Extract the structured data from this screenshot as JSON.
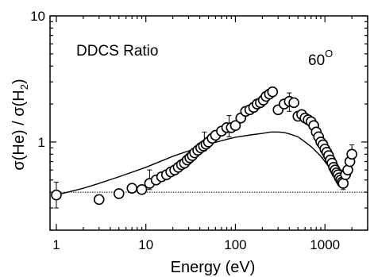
{
  "chart_data": {
    "type": "scatter",
    "annotation_left": "DDCS Ratio",
    "annotation_right_value": "60",
    "annotation_right_unit": "O",
    "xlabel": "Energy (eV)",
    "ylabel_parts": [
      "σ(He) / σ(H",
      "2",
      ")"
    ],
    "x_scale": "log",
    "y_scale": "log",
    "xlim": [
      0.85,
      3000
    ],
    "ylim": [
      0.2,
      10
    ],
    "x_ticks": [
      1,
      10,
      100,
      1000
    ],
    "x_tick_labels": [
      "1",
      "10",
      "100",
      "1000"
    ],
    "y_ticks": [
      1,
      10
    ],
    "y_tick_labels": [
      "1",
      "10"
    ],
    "grid": false,
    "series": [
      {
        "kind": "points",
        "marker": "open-circle",
        "x": [
          1,
          3,
          5,
          7,
          9,
          11,
          13,
          15,
          17,
          19,
          21,
          23,
          25,
          27,
          29,
          31,
          33,
          35,
          38,
          41,
          44,
          47,
          50,
          55,
          60,
          70,
          80,
          90,
          100,
          115,
          130,
          145,
          160,
          175,
          190,
          205,
          220,
          240,
          260,
          300,
          350,
          400,
          450,
          500,
          550,
          600,
          650,
          700,
          750,
          800,
          850,
          900,
          950,
          1000,
          1050,
          1100,
          1150,
          1200,
          1250,
          1300,
          1350,
          1400,
          1450,
          1500,
          1550,
          1600,
          1700,
          1800,
          1900,
          2000
        ],
        "y": [
          0.38,
          0.35,
          0.39,
          0.43,
          0.42,
          0.47,
          0.5,
          0.53,
          0.55,
          0.58,
          0.6,
          0.63,
          0.66,
          0.68,
          0.72,
          0.75,
          0.78,
          0.82,
          0.86,
          0.9,
          0.93,
          0.96,
          1.0,
          1.07,
          1.13,
          1.22,
          1.3,
          1.3,
          1.35,
          1.55,
          1.75,
          1.8,
          1.88,
          2.0,
          2.05,
          2.15,
          2.3,
          2.4,
          2.5,
          1.8,
          2.0,
          2.1,
          2.05,
          1.6,
          1.65,
          1.55,
          1.5,
          1.45,
          1.35,
          1.2,
          1.1,
          1.0,
          0.95,
          0.88,
          0.83,
          0.78,
          0.72,
          0.68,
          0.63,
          0.6,
          0.57,
          0.55,
          0.52,
          0.5,
          0.48,
          0.47,
          0.55,
          0.6,
          0.7,
          0.8
        ]
      },
      {
        "kind": "errorbars",
        "points": [
          {
            "x": 1,
            "y": 0.38,
            "low": 0.3,
            "high": 0.48
          },
          {
            "x": 11,
            "y": 0.5,
            "low": 0.42,
            "high": 0.6
          },
          {
            "x": 45,
            "y": 1.0,
            "low": 0.85,
            "high": 1.2
          },
          {
            "x": 85,
            "y": 1.35,
            "low": 1.1,
            "high": 1.62
          },
          {
            "x": 400,
            "y": 2.1,
            "low": 1.75,
            "high": 2.45
          },
          {
            "x": 1000,
            "y": 0.9,
            "low": 0.76,
            "high": 1.02
          },
          {
            "x": 1600,
            "y": 0.5,
            "low": 0.42,
            "high": 0.6
          },
          {
            "x": 2000,
            "y": 0.8,
            "low": 0.68,
            "high": 0.95
          }
        ]
      },
      {
        "kind": "line",
        "style": "solid",
        "x": [
          1,
          2,
          3,
          5,
          10,
          20,
          30,
          50,
          80,
          100,
          150,
          200,
          250,
          300,
          350,
          400,
          500,
          600,
          700,
          800,
          900,
          1000,
          1100,
          1200,
          1300,
          1400,
          1500,
          1600,
          1700,
          1800,
          1900,
          2000
        ],
        "y": [
          0.38,
          0.43,
          0.47,
          0.53,
          0.63,
          0.77,
          0.85,
          0.96,
          1.05,
          1.09,
          1.14,
          1.17,
          1.2,
          1.2,
          1.19,
          1.16,
          1.1,
          1.0,
          0.92,
          0.84,
          0.77,
          0.7,
          0.64,
          0.59,
          0.55,
          0.52,
          0.5,
          0.55,
          0.62,
          0.69,
          0.75,
          0.82
        ]
      },
      {
        "kind": "line",
        "style": "dotted",
        "x": [
          1,
          3000
        ],
        "y": [
          0.4,
          0.4
        ]
      }
    ]
  }
}
